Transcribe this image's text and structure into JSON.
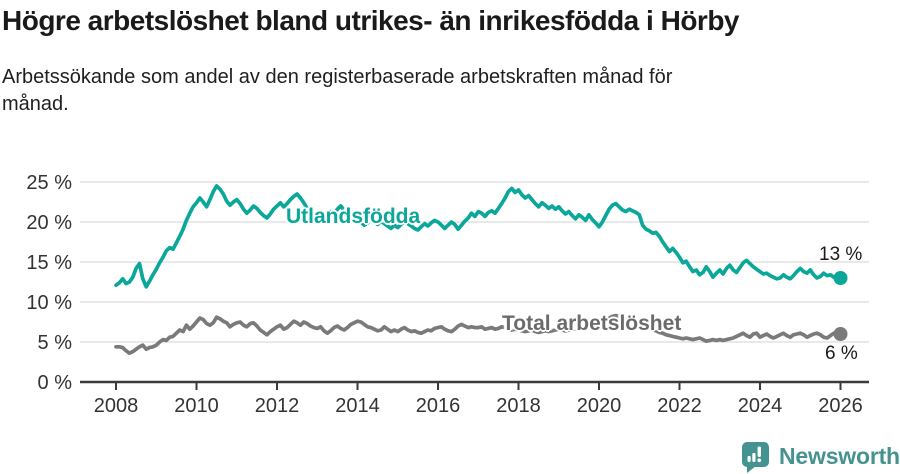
{
  "header": {
    "title": "Högre arbetslöshet bland utrikes- än inrikesfödda i Hörby",
    "subtitle_line1": "Arbetssökande som andel av den registerbaserade arbetskraften månad för",
    "subtitle_line2": "månad."
  },
  "footer": {
    "brand": "Newsworthy",
    "brand_color": "#459390"
  },
  "chart_data": {
    "type": "line",
    "title": "Högre arbetslöshet bland utrikes- än inrikesfödda i Hörby",
    "subtitle": "Arbetssökande som andel av den registerbaserade arbetskraften månad för månad.",
    "x_unit": "month",
    "start_year": 2008,
    "x_axis": {
      "ticks": [
        2008,
        2010,
        2012,
        2014,
        2016,
        2018,
        2020,
        2022,
        2024,
        2026
      ]
    },
    "y_axis": {
      "values": [
        0,
        5,
        10,
        15,
        20,
        25
      ],
      "suffix": " %",
      "ylim": [
        0,
        26
      ],
      "grid": true
    },
    "series": [
      {
        "name": "Utlandsfödda",
        "color": "#0aa79a",
        "end_label": "13 %",
        "end_value": 13,
        "values": [
          12.1,
          12.4,
          12.9,
          12.3,
          12.5,
          13.1,
          14.2,
          14.8,
          12.9,
          11.9,
          12.6,
          13.4,
          14.1,
          14.9,
          15.6,
          16.4,
          16.8,
          16.6,
          17.4,
          18.2,
          19.1,
          20.2,
          21.1,
          21.9,
          22.4,
          23.0,
          22.5,
          21.9,
          22.8,
          23.8,
          24.5,
          24.1,
          23.5,
          22.6,
          22.1,
          22.5,
          22.8,
          22.3,
          21.6,
          21.1,
          21.5,
          22.0,
          21.7,
          21.2,
          20.8,
          20.5,
          21.0,
          21.6,
          22.0,
          22.4,
          21.9,
          22.3,
          22.8,
          23.2,
          23.5,
          23.0,
          22.4,
          21.7,
          21.0,
          20.4,
          20.7,
          21.1,
          20.6,
          20.9,
          21.3,
          21.0,
          21.6,
          22.0,
          21.5,
          20.9,
          20.4,
          20.1,
          20.4,
          20.0,
          19.6,
          19.9,
          20.3,
          20.0,
          19.7,
          20.1,
          19.8,
          19.5,
          19.2,
          19.6,
          19.3,
          19.7,
          20.1,
          19.8,
          19.5,
          19.2,
          19.0,
          19.4,
          19.8,
          19.5,
          19.9,
          20.2,
          20.0,
          19.6,
          19.2,
          19.6,
          20.0,
          19.7,
          19.1,
          19.6,
          20.1,
          20.5,
          21.1,
          20.7,
          21.3,
          21.1,
          20.7,
          21.2,
          21.4,
          21.1,
          21.7,
          22.3,
          23.0,
          23.8,
          24.2,
          23.7,
          24.0,
          23.4,
          23.0,
          23.3,
          22.8,
          22.3,
          21.9,
          22.4,
          22.1,
          21.7,
          22.0,
          21.6,
          21.9,
          21.4,
          21.0,
          21.3,
          20.8,
          20.4,
          20.9,
          20.6,
          20.2,
          20.9,
          20.3,
          19.9,
          19.4,
          20.0,
          20.8,
          21.6,
          22.1,
          22.3,
          21.9,
          21.5,
          21.3,
          21.6,
          21.4,
          21.2,
          20.9,
          19.6,
          19.1,
          18.9,
          18.6,
          18.7,
          18.2,
          17.5,
          16.9,
          16.3,
          16.7,
          16.2,
          15.6,
          14.9,
          15.1,
          14.4,
          13.8,
          14.0,
          13.4,
          13.7,
          14.4,
          13.8,
          13.1,
          13.6,
          14.0,
          13.5,
          14.2,
          14.6,
          14.0,
          13.7,
          14.3,
          14.9,
          15.2,
          14.8,
          14.4,
          14.1,
          13.8,
          13.5,
          13.6,
          13.3,
          13.1,
          12.9,
          13.0,
          13.4,
          13.1,
          12.9,
          13.3,
          13.8,
          14.2,
          13.8,
          13.6,
          14.0,
          13.4,
          13.0,
          13.2,
          13.6,
          13.3,
          13.4,
          13.1,
          13.0,
          13.0
        ]
      },
      {
        "name": "Total arbetslöshet",
        "color": "#7a7a7a",
        "label_color": "#6b6b6b",
        "end_label": "6 %",
        "end_value": 6,
        "values": [
          4.4,
          4.4,
          4.3,
          3.9,
          3.6,
          3.8,
          4.1,
          4.4,
          4.6,
          4.1,
          4.3,
          4.4,
          4.6,
          5.0,
          5.3,
          5.2,
          5.6,
          5.7,
          6.1,
          6.5,
          6.3,
          7.1,
          6.6,
          7.0,
          7.5,
          8.0,
          7.8,
          7.3,
          7.1,
          7.4,
          8.1,
          7.9,
          7.6,
          7.4,
          6.9,
          7.2,
          7.4,
          7.5,
          7.1,
          6.9,
          7.3,
          7.4,
          7.0,
          6.5,
          6.2,
          5.9,
          6.3,
          6.6,
          6.9,
          7.1,
          6.6,
          6.8,
          7.2,
          7.6,
          7.4,
          7.1,
          7.5,
          7.3,
          7.0,
          6.8,
          6.7,
          6.9,
          6.4,
          6.1,
          6.4,
          6.8,
          7.0,
          6.7,
          6.5,
          6.8,
          7.2,
          7.4,
          7.6,
          7.5,
          7.2,
          6.9,
          6.8,
          6.6,
          6.4,
          6.5,
          6.9,
          6.6,
          6.3,
          6.5,
          6.3,
          6.6,
          6.8,
          6.5,
          6.3,
          6.4,
          6.2,
          6.1,
          6.3,
          6.5,
          6.4,
          6.7,
          6.8,
          6.9,
          6.6,
          6.4,
          6.3,
          6.6,
          7.0,
          7.2,
          7.0,
          6.8,
          6.9,
          6.8,
          6.8,
          6.9,
          6.6,
          6.7,
          6.8,
          6.6,
          6.7,
          6.9,
          6.8,
          6.6,
          6.5,
          6.6,
          6.5,
          6.4,
          6.3,
          6.4,
          6.5,
          6.3,
          6.2,
          6.3,
          6.4,
          6.3,
          6.4,
          6.5,
          6.6,
          6.5,
          6.4,
          6.5,
          6.6,
          6.7,
          6.8,
          6.9,
          7.0,
          7.1,
          7.0,
          7.1,
          7.2,
          7.3,
          7.6,
          8.0,
          8.2,
          8.3,
          8.2,
          8.0,
          7.9,
          7.7,
          7.5,
          7.4,
          7.3,
          7.2,
          7.0,
          6.8,
          6.6,
          6.4,
          6.2,
          6.1,
          5.9,
          5.8,
          5.7,
          5.6,
          5.5,
          5.4,
          5.5,
          5.4,
          5.3,
          5.4,
          5.5,
          5.3,
          5.1,
          5.2,
          5.3,
          5.2,
          5.3,
          5.2,
          5.3,
          5.4,
          5.5,
          5.7,
          5.9,
          6.1,
          5.8,
          5.6,
          6.0,
          6.1,
          5.6,
          5.8,
          6.0,
          5.7,
          5.5,
          5.7,
          5.9,
          6.1,
          5.8,
          5.6,
          5.9,
          6.0,
          6.1,
          5.9,
          5.6,
          5.8,
          6.0,
          6.1,
          5.9,
          5.6,
          5.5,
          5.8,
          6.1,
          6.0,
          6.0
        ]
      }
    ],
    "legend_position": "inline-labels"
  }
}
